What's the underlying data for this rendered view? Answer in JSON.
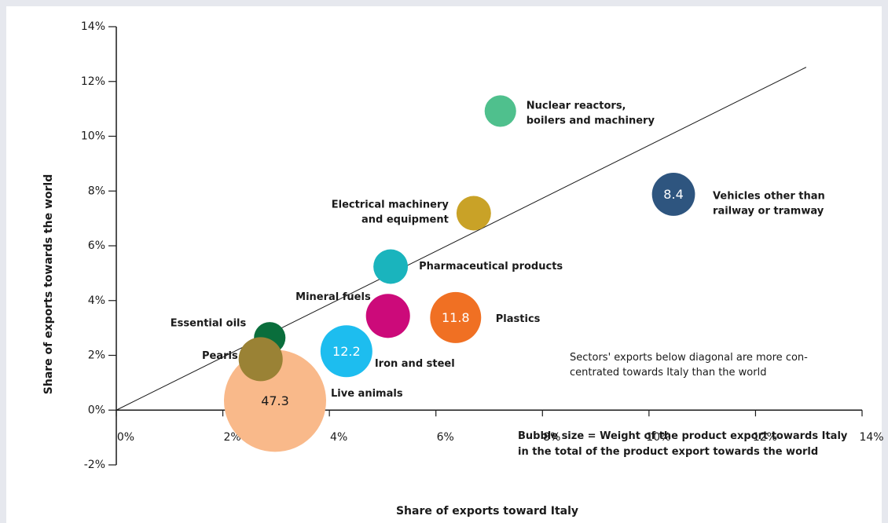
{
  "chart_data": {
    "type": "bubble",
    "x_label": "Share of exports toward Italy",
    "y_label": "Share of exports towards the world",
    "xlim": [
      0,
      14
    ],
    "ylim": [
      -2,
      14
    ],
    "xticks": [
      {
        "value": 0,
        "label": "0%"
      },
      {
        "value": 2,
        "label": "2%"
      },
      {
        "value": 4,
        "label": "4%"
      },
      {
        "value": 6,
        "label": "6%"
      },
      {
        "value": 8,
        "label": "8%"
      },
      {
        "value": 10,
        "label": "10%"
      },
      {
        "value": 12,
        "label": "12%"
      },
      {
        "value": 14,
        "label": "14%"
      }
    ],
    "yticks": [
      {
        "value": -2,
        "label": "-2%"
      },
      {
        "value": 0,
        "label": "0%"
      },
      {
        "value": 2,
        "label": "2%"
      },
      {
        "value": 4,
        "label": "4%"
      },
      {
        "value": 6,
        "label": "6%"
      },
      {
        "value": 8,
        "label": "8%"
      },
      {
        "value": 10,
        "label": "10%"
      },
      {
        "value": 12,
        "label": "12%"
      },
      {
        "value": 14,
        "label": "14%"
      }
    ],
    "diagonal": {
      "x": [
        0,
        12.95
      ],
      "y": [
        0,
        12.52
      ]
    },
    "points": [
      {
        "name": "Nuclear reactors,\nboilers and machinery",
        "color": "#4fc08d",
        "x": 7.21,
        "y": 10.92,
        "size": 4.5,
        "size_shown": false
      },
      {
        "name": "Vehicles other than\nrailway or tramway",
        "color": "#2e557f",
        "x": 10.46,
        "y": 7.88,
        "size": 8.4,
        "size_shown": true
      },
      {
        "name": "Electrical machinery\nand equipment",
        "color": "#c9a227",
        "x": 6.71,
        "y": 7.19,
        "size": 5.4,
        "size_shown": false
      },
      {
        "name": "Pharmaceutical products",
        "color": "#1ab4bd",
        "x": 5.15,
        "y": 5.24,
        "size": 5.4,
        "size_shown": false
      },
      {
        "name": "Mineral fuels",
        "color": "#cc0a7a",
        "x": 5.1,
        "y": 3.44,
        "size": 8.8,
        "size_shown": false
      },
      {
        "name": "Plastics",
        "color": "#f07023",
        "x": 6.37,
        "y": 3.38,
        "size": 11.8,
        "size_shown": true
      },
      {
        "name": "Iron and steel",
        "color": "#1dbdef",
        "x": 4.32,
        "y": 2.15,
        "size": 12.2,
        "size_shown": true
      },
      {
        "name": "Live animals",
        "color": "#f9b98a",
        "x": 2.98,
        "y": 0.34,
        "size": 47.3,
        "size_shown": true
      },
      {
        "name": "Essential oils",
        "color": "#0a6e3c",
        "x": 2.88,
        "y": 2.64,
        "size": 4.5,
        "size_shown": false
      },
      {
        "name": "Pearls",
        "color": "#9a8235",
        "x": 2.71,
        "y": 1.86,
        "size": 8.8,
        "size_shown": false
      }
    ],
    "annotations": [
      "Sectors' exports below diagonal are more con-\ncentrated towards Italy than the world",
      "Bubble size = Weight of the product export towards Italy\nin the total of the product export towards the world"
    ]
  }
}
